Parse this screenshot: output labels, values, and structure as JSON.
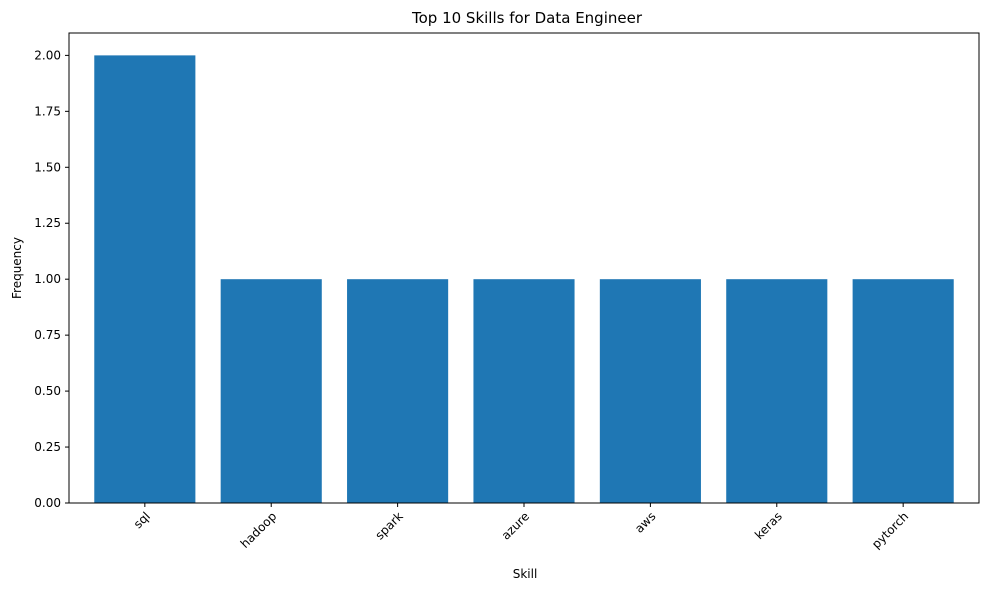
{
  "chart_data": {
    "type": "bar",
    "title": "Top 10 Skills for Data Engineer",
    "xlabel": "Skill",
    "ylabel": "Frequency",
    "categories": [
      "sql",
      "hadoop",
      "spark",
      "azure",
      "aws",
      "keras",
      "pytorch"
    ],
    "values": [
      2,
      1,
      1,
      1,
      1,
      1,
      1
    ],
    "ylim": [
      0,
      2.1
    ],
    "yticks": [
      "0.00",
      "0.25",
      "0.50",
      "0.75",
      "1.00",
      "1.25",
      "1.50",
      "1.75",
      "2.00"
    ],
    "grid": false,
    "bar_color": "#1f77b4"
  }
}
